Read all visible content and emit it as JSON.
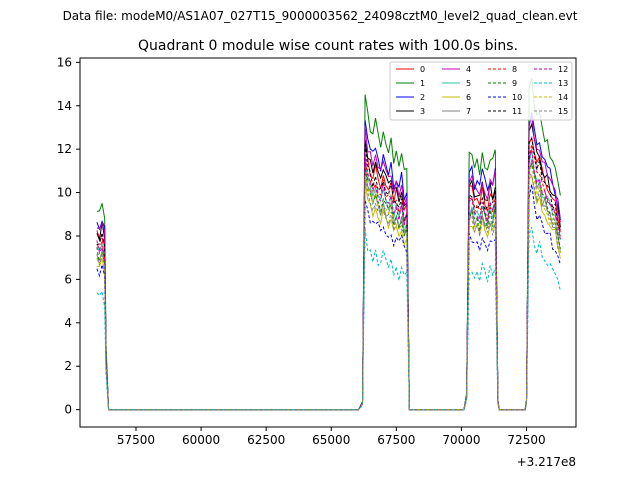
{
  "figure": {
    "suptitle": "Data file: modeM0/AS1A07_027T15_9000003562_24098cztM0_level2_quad_clean.evt"
  },
  "chart_data": {
    "type": "line",
    "title": "Quadrant 0 module wise count rates with 100.0s bins.",
    "xlabel": "",
    "ylabel": "",
    "x_offset_label": "+3.217e8",
    "xlim": [
      55350,
      74400
    ],
    "ylim": [
      -0.8,
      16.2
    ],
    "xticks": [
      57500,
      60000,
      62500,
      65000,
      67500,
      70000,
      72500
    ],
    "xtick_labels": [
      "57500",
      "60000",
      "62500",
      "65000",
      "67500",
      "70000",
      "72500"
    ],
    "yticks": [
      0,
      2,
      4,
      6,
      8,
      10,
      12,
      14,
      16
    ],
    "ytick_labels": [
      "0",
      "2",
      "4",
      "6",
      "8",
      "10",
      "12",
      "14",
      "16"
    ],
    "grid": false,
    "legend_position": "top-right",
    "legend_columns": 4,
    "segments": [
      {
        "x": [
          56000,
          56100,
          56200,
          56300,
          56350
        ],
        "shape": [
          1.0,
          0.97,
          1.02,
          0.95,
          0.32
        ]
      },
      {
        "x": [
          56450,
          66050
        ],
        "shape": [
          0.0,
          0.0
        ]
      },
      {
        "x": [
          66050,
          66200,
          66300,
          66400,
          66500,
          66600,
          66700,
          66800,
          66900,
          67000,
          67100,
          67200,
          67300,
          67400,
          67500,
          67600,
          67700,
          67800,
          67900,
          68000
        ],
        "shape": [
          0.0,
          0.04,
          1.55,
          1.43,
          1.38,
          1.35,
          1.4,
          1.33,
          1.3,
          1.36,
          1.28,
          1.27,
          1.31,
          1.22,
          1.25,
          1.2,
          1.24,
          1.15,
          1.18,
          0.0
        ]
      },
      {
        "x": [
          68000,
          70100
        ],
        "shape": [
          0.0,
          0.0
        ]
      },
      {
        "x": [
          70100,
          70200,
          70300,
          70400,
          70500,
          70600,
          70700,
          70800,
          70900,
          71000,
          71100,
          71200,
          71300,
          71400,
          71450
        ],
        "shape": [
          0.0,
          0.08,
          1.25,
          1.27,
          1.2,
          1.22,
          1.18,
          1.26,
          1.21,
          1.17,
          1.24,
          1.2,
          1.28,
          0.05,
          0.0
        ]
      },
      {
        "x": [
          71450,
          72450
        ],
        "shape": [
          0.0,
          0.0
        ]
      },
      {
        "x": [
          72450,
          72500,
          72600,
          72700,
          72800,
          72900,
          73000,
          73100,
          73200,
          73300,
          73400,
          73500,
          73600,
          73700,
          73800
        ],
        "shape": [
          0.0,
          0.05,
          1.55,
          1.6,
          1.5,
          1.42,
          1.45,
          1.36,
          1.33,
          1.3,
          1.26,
          1.22,
          1.18,
          1.12,
          1.05
        ]
      }
    ],
    "series": [
      {
        "name": "0",
        "color": "#ff0000",
        "dash": "solid",
        "base": 8.0
      },
      {
        "name": "1",
        "color": "#008000",
        "dash": "solid",
        "base": 9.4
      },
      {
        "name": "2",
        "color": "#0000ff",
        "dash": "solid",
        "base": 8.6
      },
      {
        "name": "3",
        "color": "#000000",
        "dash": "solid",
        "base": 8.2
      },
      {
        "name": "4",
        "color": "#bf00bf",
        "dash": "solid",
        "base": 8.4
      },
      {
        "name": "5",
        "color": "#2fc2a6",
        "dash": "solid",
        "base": 7.4
      },
      {
        "name": "6",
        "color": "#bfbf00",
        "dash": "solid",
        "base": 6.8
      },
      {
        "name": "7",
        "color": "#808080",
        "dash": "solid",
        "base": 7.1
      },
      {
        "name": "8",
        "color": "#ff0000",
        "dash": "dashed",
        "base": 7.6
      },
      {
        "name": "9",
        "color": "#008000",
        "dash": "dashed",
        "base": 7.2
      },
      {
        "name": "10",
        "color": "#0000ff",
        "dash": "dashed",
        "base": 6.3
      },
      {
        "name": "11",
        "color": "#000000",
        "dash": "dashed",
        "base": 7.8
      },
      {
        "name": "12",
        "color": "#bf00bf",
        "dash": "dashed",
        "base": 7.5
      },
      {
        "name": "13",
        "color": "#00bfbf",
        "dash": "dashed",
        "base": 5.2
      },
      {
        "name": "14",
        "color": "#bfbf00",
        "dash": "dashed",
        "base": 7.0
      },
      {
        "name": "15",
        "color": "#808080",
        "dash": "dashed",
        "base": 6.9
      }
    ]
  }
}
